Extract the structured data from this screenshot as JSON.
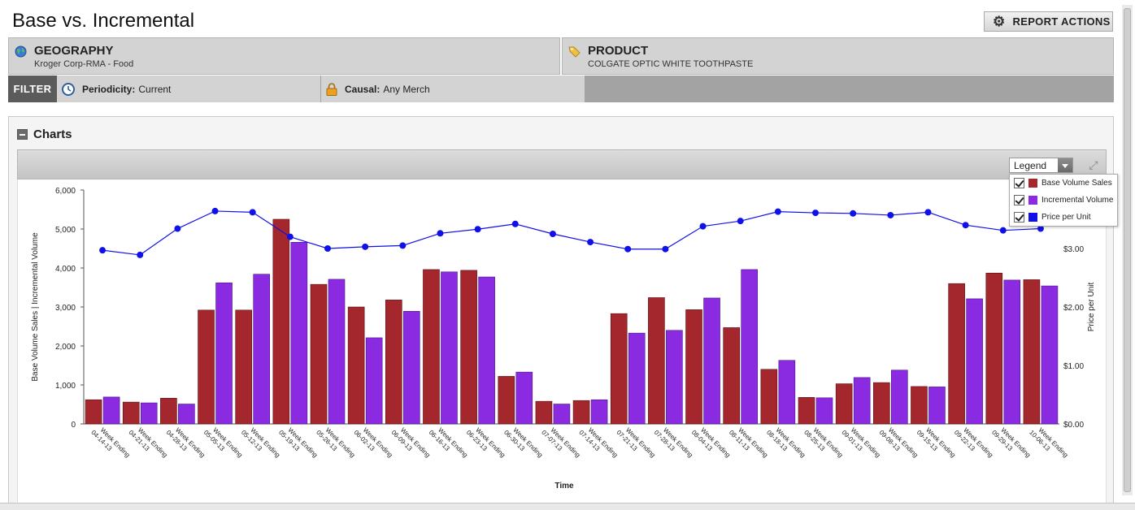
{
  "title": "Base vs. Incremental",
  "report_actions_label": "REPORT ACTIONS",
  "geography": {
    "heading": "GEOGRAPHY",
    "value": "Kroger Corp-RMA - Food"
  },
  "product": {
    "heading": "PRODUCT",
    "value": "COLGATE OPTIC WHITE TOOTHPASTE"
  },
  "filter": {
    "label": "FILTER",
    "periodicity_label": "Periodicity:",
    "periodicity_value": "Current",
    "causal_label": "Causal:",
    "causal_value": "Any Merch"
  },
  "charts_section": {
    "title": "Charts",
    "legend_select": "Legend"
  },
  "colors": {
    "base": "#a3272d",
    "incremental": "#8a2be2",
    "price": "#1010e8"
  },
  "chart_data": {
    "type": "bar",
    "xlabel": "Time",
    "ylabel": "Base Volume Sales | Incremental Volume",
    "y2label": "Price per Unit",
    "ylim": [
      0,
      6000
    ],
    "y2lim": [
      0,
      4
    ],
    "yticks": [
      "0",
      "1,000",
      "2,000",
      "3,000",
      "4,000",
      "5,000",
      "6,000"
    ],
    "y2ticks": [
      "$0.00",
      "$1.00",
      "$2.00",
      "$3.00"
    ],
    "grid": false,
    "legend_position": "top-right",
    "category_prefix": "Week Ending",
    "categories": [
      "04-14-13",
      "04-21-13",
      "04-28-13",
      "05-05-13",
      "05-12-13",
      "05-19-13",
      "05-26-13",
      "06-02-13",
      "06-09-13",
      "06-16-13",
      "06-23-13",
      "06-30-13",
      "07-07-13",
      "07-14-13",
      "07-21-13",
      "07-28-13",
      "08-04-13",
      "08-11-13",
      "08-18-13",
      "08-25-13",
      "09-01-13",
      "09-08-13",
      "09-15-13",
      "09-22-13",
      "09-29-13",
      "10-06-13"
    ],
    "series": [
      {
        "name": "Base Volume Sales",
        "type": "bar",
        "axis": "left",
        "values": [
          620,
          560,
          660,
          2920,
          2920,
          5250,
          3580,
          3000,
          3180,
          3960,
          3940,
          1220,
          580,
          600,
          2830,
          3240,
          2930,
          2470,
          1400,
          680,
          1030,
          1060,
          960,
          3600,
          3870,
          3700
        ]
      },
      {
        "name": "Incremental Volume",
        "type": "bar",
        "axis": "left",
        "values": [
          690,
          540,
          510,
          3620,
          3840,
          4660,
          3710,
          2210,
          2890,
          3900,
          3770,
          1330,
          510,
          620,
          2330,
          2400,
          3230,
          3960,
          1630,
          670,
          1190,
          1380,
          950,
          3210,
          3690,
          3540
        ]
      },
      {
        "name": "Price per Unit",
        "type": "line",
        "axis": "right",
        "values": [
          2.97,
          2.89,
          3.34,
          3.64,
          3.62,
          3.2,
          3.0,
          3.03,
          3.05,
          3.26,
          3.33,
          3.42,
          3.25,
          3.11,
          2.99,
          2.99,
          3.38,
          3.47,
          3.63,
          3.61,
          3.6,
          3.57,
          3.62,
          3.4,
          3.31,
          3.34
        ]
      }
    ]
  }
}
